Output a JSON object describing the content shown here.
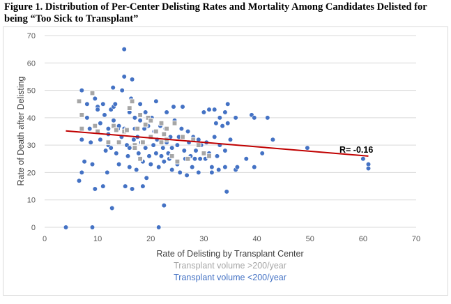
{
  "figure": {
    "title": "Figure 1. Distribution of Per-Center Delisting Rates and Mortality Among Candidates Delisted for being “Too Sick to Transplant”"
  },
  "colors": {
    "blue": "#4472c4",
    "gray": "#a6a6a6",
    "trend": "#c00000",
    "grid": "#d9d9d9"
  },
  "chart_data": {
    "type": "scatter",
    "xlabel": "Rate of Delisting by Transplant Center",
    "ylabel": "Rate of Death after Delisting",
    "xlim": [
      0,
      70
    ],
    "ylim": [
      0,
      70
    ],
    "xticks": [
      0,
      10,
      20,
      30,
      40,
      50,
      60,
      70
    ],
    "yticks": [
      0,
      10,
      20,
      30,
      40,
      50,
      60,
      70
    ],
    "grid": "horizontal",
    "annotation": "R= -0.16",
    "trendline": {
      "x": [
        4,
        61
      ],
      "y": [
        35.2,
        26.0
      ]
    },
    "legend": [
      {
        "label": "Transplant volume >200/year",
        "color": "#a6a6a6"
      },
      {
        "label": "Transplant volume <200/year",
        "color": "#4472c4"
      }
    ],
    "series": [
      {
        "name": "Transplant volume <200/year",
        "points": [
          [
            4,
            0
          ],
          [
            6.5,
            17
          ],
          [
            7,
            50
          ],
          [
            7,
            20
          ],
          [
            7,
            32
          ],
          [
            7.5,
            24
          ],
          [
            8,
            45
          ],
          [
            8,
            40
          ],
          [
            8.5,
            36
          ],
          [
            8.7,
            31
          ],
          [
            9,
            23
          ],
          [
            9,
            0
          ],
          [
            9.5,
            47
          ],
          [
            9.5,
            14
          ],
          [
            10,
            44
          ],
          [
            10,
            43
          ],
          [
            10.5,
            38
          ],
          [
            10.5,
            32
          ],
          [
            11,
            15
          ],
          [
            11,
            45
          ],
          [
            11.3,
            41
          ],
          [
            11.5,
            28
          ],
          [
            11.8,
            20
          ],
          [
            12,
            30
          ],
          [
            12,
            34
          ],
          [
            12,
            36
          ],
          [
            12.5,
            43
          ],
          [
            12.5,
            29
          ],
          [
            12.7,
            7
          ],
          [
            12.9,
            51
          ],
          [
            13,
            44
          ],
          [
            13,
            39
          ],
          [
            13.3,
            45
          ],
          [
            13.5,
            27
          ],
          [
            13.8,
            36
          ],
          [
            14,
            23
          ],
          [
            14,
            37
          ],
          [
            14.5,
            33
          ],
          [
            14.6,
            50
          ],
          [
            15,
            65
          ],
          [
            15,
            55
          ],
          [
            15,
            36
          ],
          [
            15.2,
            15
          ],
          [
            15.5,
            30
          ],
          [
            15.7,
            26
          ],
          [
            16,
            29
          ],
          [
            16,
            42
          ],
          [
            16,
            22
          ],
          [
            16.3,
            47
          ],
          [
            16.5,
            54
          ],
          [
            16.5,
            14
          ],
          [
            16.8,
            32
          ],
          [
            17,
            36
          ],
          [
            17,
            40
          ],
          [
            17.3,
            21
          ],
          [
            17.5,
            33
          ],
          [
            17.7,
            27
          ],
          [
            18,
            45
          ],
          [
            18,
            39
          ],
          [
            18.2,
            31
          ],
          [
            18.5,
            15
          ],
          [
            18.5,
            24
          ],
          [
            18.8,
            36
          ],
          [
            19,
            42
          ],
          [
            19,
            29
          ],
          [
            19.2,
            18
          ],
          [
            19.5,
            37
          ],
          [
            19.7,
            26
          ],
          [
            20,
            33
          ],
          [
            20,
            23
          ],
          [
            20.2,
            40
          ],
          [
            20.5,
            30
          ],
          [
            20.7,
            35
          ],
          [
            21,
            46
          ],
          [
            21,
            27
          ],
          [
            21.2,
            32
          ],
          [
            21.5,
            22
          ],
          [
            21.5,
            0
          ],
          [
            21.8,
            37
          ],
          [
            22,
            38
          ],
          [
            22,
            26
          ],
          [
            22.3,
            29
          ],
          [
            22.5,
            24
          ],
          [
            22.5,
            8
          ],
          [
            22.8,
            36
          ],
          [
            23,
            31
          ],
          [
            23,
            42
          ],
          [
            23.3,
            27
          ],
          [
            23.5,
            25
          ],
          [
            23.7,
            33
          ],
          [
            24,
            29
          ],
          [
            24,
            21
          ],
          [
            24.3,
            44
          ],
          [
            24.5,
            39
          ],
          [
            25,
            30
          ],
          [
            25,
            23
          ],
          [
            25.3,
            33
          ],
          [
            25.5,
            20
          ],
          [
            25.8,
            36
          ],
          [
            26,
            44
          ],
          [
            26.3,
            28
          ],
          [
            26.5,
            25
          ],
          [
            26.8,
            19
          ],
          [
            27,
            35
          ],
          [
            27.2,
            31
          ],
          [
            27.5,
            26
          ],
          [
            27.8,
            22
          ],
          [
            28,
            33
          ],
          [
            28.3,
            25
          ],
          [
            28.5,
            28
          ],
          [
            29,
            32
          ],
          [
            29,
            20
          ],
          [
            29.3,
            25
          ],
          [
            29.5,
            30
          ],
          [
            30,
            42
          ],
          [
            30.3,
            25
          ],
          [
            30.5,
            31
          ],
          [
            31,
            43
          ],
          [
            31,
            27
          ],
          [
            31.5,
            22
          ],
          [
            31.5,
            20
          ],
          [
            32,
            33
          ],
          [
            32,
            43
          ],
          [
            32.3,
            38
          ],
          [
            32.5,
            26
          ],
          [
            32.8,
            21
          ],
          [
            33,
            40
          ],
          [
            33,
            30
          ],
          [
            33.5,
            37
          ],
          [
            34,
            42
          ],
          [
            34,
            28
          ],
          [
            34,
            22
          ],
          [
            34.3,
            13
          ],
          [
            34.5,
            45
          ],
          [
            34.5,
            38
          ],
          [
            35,
            32
          ],
          [
            36,
            40
          ],
          [
            36,
            21
          ],
          [
            36.3,
            22
          ],
          [
            38,
            25
          ],
          [
            39,
            41
          ],
          [
            39.5,
            40
          ],
          [
            39.5,
            22
          ],
          [
            41,
            27
          ],
          [
            42,
            40
          ],
          [
            43,
            32
          ],
          [
            49.5,
            29
          ],
          [
            60,
            25
          ],
          [
            61,
            23
          ],
          [
            61,
            21.5
          ]
        ]
      },
      {
        "name": "Transplant volume >200/year",
        "points": [
          [
            6.5,
            46
          ],
          [
            7,
            36
          ],
          [
            7,
            41
          ],
          [
            9,
            49
          ],
          [
            9.5,
            37
          ],
          [
            10,
            35
          ],
          [
            12,
            31
          ],
          [
            13,
            37
          ],
          [
            13.5,
            35.5
          ],
          [
            14,
            31
          ],
          [
            15,
            35
          ],
          [
            15.5,
            35.5
          ],
          [
            16,
            43.5
          ],
          [
            16.5,
            46
          ],
          [
            17,
            30
          ],
          [
            17,
            29
          ],
          [
            17.5,
            36
          ],
          [
            18,
            41
          ],
          [
            18,
            25
          ],
          [
            18.5,
            31
          ],
          [
            19,
            37.5
          ],
          [
            19.5,
            40
          ],
          [
            20,
            39
          ],
          [
            20,
            33
          ],
          [
            21,
            35
          ],
          [
            22,
            38
          ],
          [
            22,
            31
          ],
          [
            22.5,
            34
          ],
          [
            23,
            36
          ],
          [
            23,
            32
          ],
          [
            24,
            26
          ],
          [
            24.5,
            38
          ],
          [
            25,
            24
          ],
          [
            26,
            33
          ],
          [
            27,
            25
          ],
          [
            28,
            32
          ],
          [
            29,
            30
          ],
          [
            30,
            27
          ],
          [
            31,
            26
          ]
        ]
      }
    ]
  }
}
